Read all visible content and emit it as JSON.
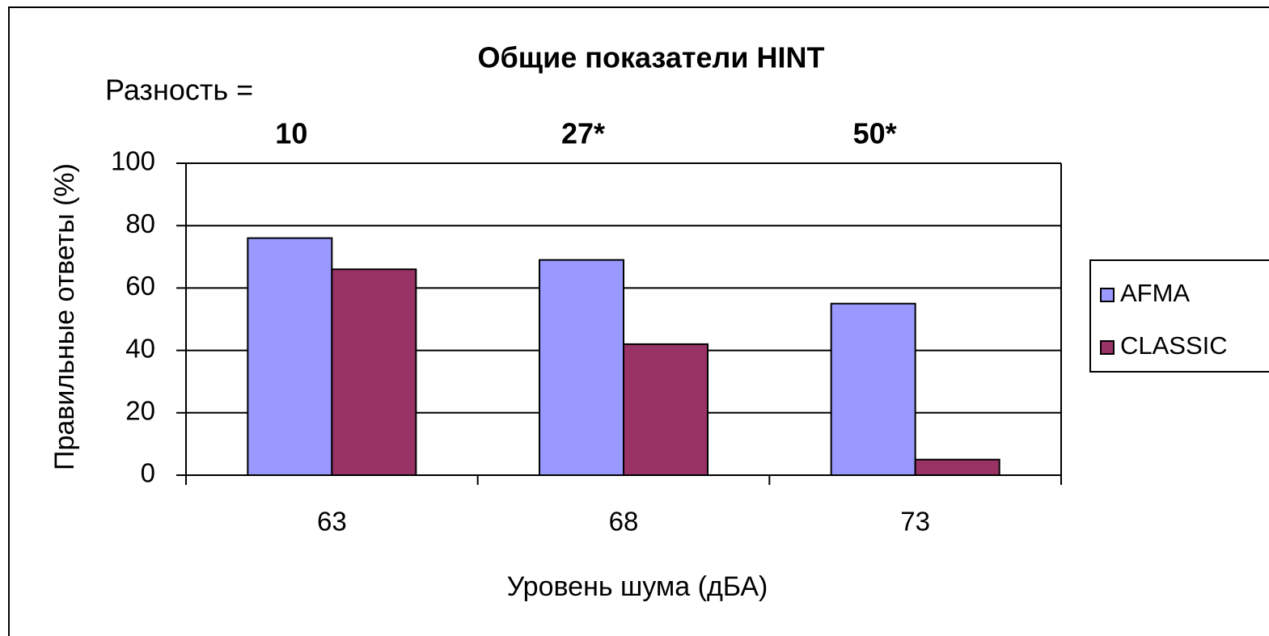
{
  "chart_data": {
    "type": "bar",
    "title": "Общие показатели HINT",
    "annotation_title": "Разность =",
    "annotations": [
      "10",
      "27*",
      "50*"
    ],
    "xlabel": "Уровень шума (дБА)",
    "ylabel": "Правильные ответы (%)",
    "categories": [
      "63",
      "68",
      "73"
    ],
    "series": [
      {
        "name": "AFMA",
        "color": "#9999ff",
        "values": [
          76,
          69,
          55
        ]
      },
      {
        "name": "CLASSIC",
        "color": "#993366",
        "values": [
          66,
          42,
          5
        ]
      }
    ],
    "ylim": [
      0,
      100
    ],
    "yticks": [
      0,
      20,
      40,
      60,
      80,
      100
    ],
    "grid": true,
    "legend": "right"
  }
}
